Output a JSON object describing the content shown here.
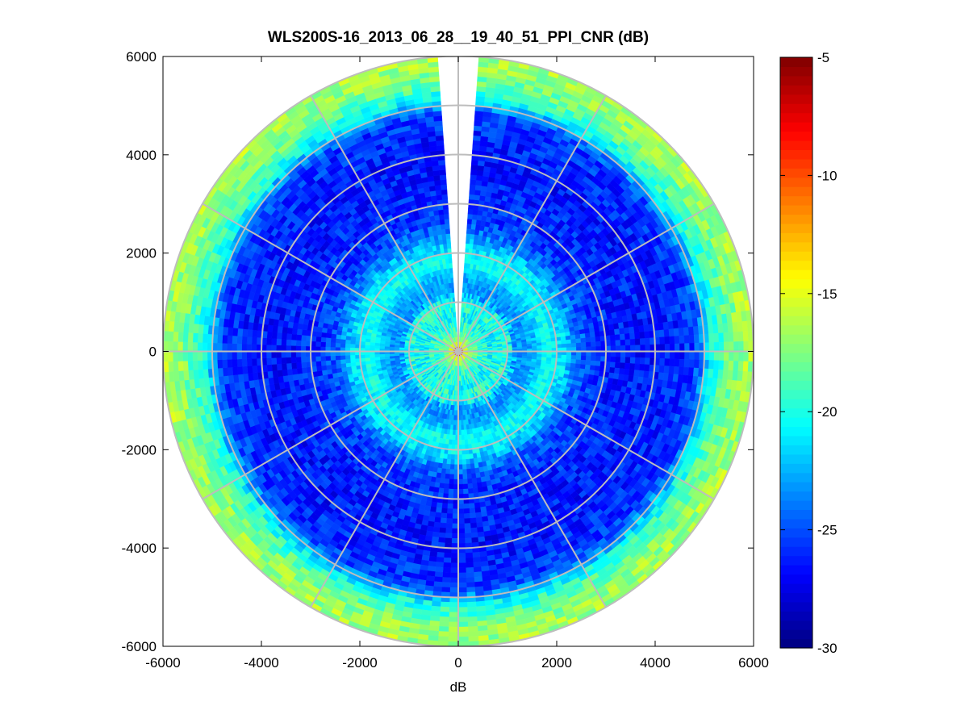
{
  "chart_data": {
    "type": "heatmap",
    "subtype": "polar-ppi",
    "title": "WLS200S-16_2013_06_28__19_40_51_PPI_CNR (dB)",
    "xlabel": "dB",
    "ylabel": "",
    "xlim": [
      -6000,
      6000
    ],
    "ylim": [
      -6000,
      6000
    ],
    "x_ticks": [
      -6000,
      -4000,
      -2000,
      0,
      2000,
      4000,
      6000
    ],
    "y_ticks": [
      -6000,
      -4000,
      -2000,
      0,
      2000,
      4000,
      6000
    ],
    "x_tick_labels": [
      "-6000",
      "-4000",
      "-2000",
      "0",
      "2000",
      "4000",
      "6000"
    ],
    "y_tick_labels": [
      "6000",
      "4000",
      "2000",
      "0",
      "-2000",
      "-4000",
      "-6000"
    ],
    "grid": true,
    "max_range": 6000,
    "range_rings": [
      1000,
      2000,
      3000,
      4000,
      5000,
      6000
    ],
    "spokes_deg": [
      0,
      30,
      60,
      90,
      120,
      150,
      180,
      210,
      240,
      270,
      300,
      330
    ],
    "gap_sector_deg": [
      -4,
      4
    ],
    "radial_profile": {
      "range": [
        0,
        80,
        200,
        400,
        700,
        1000,
        1150,
        1300,
        1600,
        1800,
        1950,
        2150,
        2400,
        2700,
        3000,
        4000,
        4800,
        5000,
        5150,
        5400,
        5700,
        6000
      ],
      "cnr_db": [
        -5,
        -12,
        -17,
        -19,
        -20.5,
        -19.5,
        -22.5,
        -23.5,
        -22,
        -20,
        -20.8,
        -21.5,
        -24,
        -25.5,
        -26,
        -26.5,
        -25.5,
        -23,
        -20.5,
        -18.5,
        -17,
        -16.5
      ]
    },
    "colorbar": {
      "min": -30,
      "max": -5,
      "ticks": [
        -5,
        -10,
        -15,
        -20,
        -25,
        -30
      ],
      "tick_labels": [
        "-5",
        "-10",
        "-15",
        "-20",
        "-25",
        "-30"
      ],
      "colormap": "jet"
    }
  },
  "colors": {
    "grid": "#bdbdbd",
    "axis": "#000000",
    "background": "#ffffff"
  }
}
